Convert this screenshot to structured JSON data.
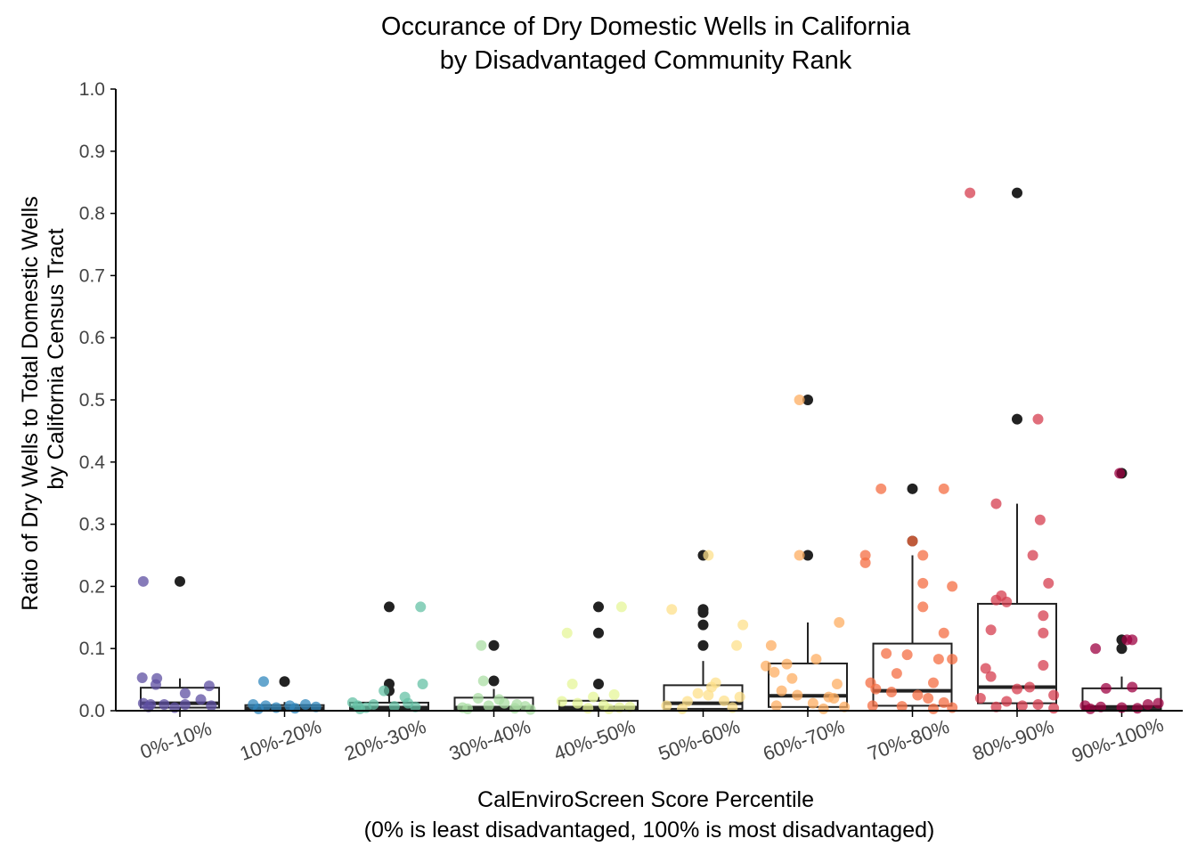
{
  "chart_data": {
    "type": "box",
    "title_line1": "Occurance of Dry Domestic Wells in California",
    "title_line2": "by Disadvantaged Community Rank",
    "xlabel_line1": "CalEnviroScreen Score Percentile",
    "xlabel_line2": "(0% is least disadvantaged, 100% is most disadvantaged)",
    "ylabel_line1": "Ratio of Dry Wells to Total Domestic Wells",
    "ylabel_line2": "by California Census Tract",
    "ylim": [
      0,
      1.0
    ],
    "yticks": [
      "0.0",
      "0.1",
      "0.2",
      "0.3",
      "0.4",
      "0.5",
      "0.6",
      "0.7",
      "0.8",
      "0.9",
      "1.0"
    ],
    "grid": false,
    "categories": [
      "0%-10%",
      "10%-20%",
      "20%-30%",
      "30%-40%",
      "40%-50%",
      "50%-60%",
      "60%-70%",
      "70%-80%",
      "80%-90%",
      "90%-100%"
    ],
    "colors": [
      "#5e4fa2",
      "#3288bd",
      "#66c2a5",
      "#abdda4",
      "#e6f598",
      "#fee08b",
      "#fdae61",
      "#f46d43",
      "#d53e4f",
      "#9e0142"
    ],
    "boxes": [
      {
        "q1": 0.005,
        "median": 0.012,
        "q3": 0.037,
        "whisker_low": 0.0,
        "whisker_high": 0.052,
        "outliers": [
          0.208
        ]
      },
      {
        "q1": 0.001,
        "median": 0.004,
        "q3": 0.009,
        "whisker_low": 0.0,
        "whisker_high": 0.014,
        "outliers": [
          0.047
        ]
      },
      {
        "q1": 0.001,
        "median": 0.005,
        "q3": 0.013,
        "whisker_low": 0.0,
        "whisker_high": 0.025,
        "outliers": [
          0.032,
          0.043,
          0.167
        ]
      },
      {
        "q1": 0.001,
        "median": 0.005,
        "q3": 0.021,
        "whisker_low": 0.0,
        "whisker_high": 0.035,
        "outliers": [
          0.048,
          0.105
        ]
      },
      {
        "q1": 0.001,
        "median": 0.005,
        "q3": 0.016,
        "whisker_low": 0.0,
        "whisker_high": 0.022,
        "outliers": [
          0.043,
          0.125,
          0.167
        ]
      },
      {
        "q1": 0.003,
        "median": 0.012,
        "q3": 0.041,
        "whisker_low": 0.0,
        "whisker_high": 0.08,
        "outliers": [
          0.105,
          0.138,
          0.158,
          0.163,
          0.25
        ]
      },
      {
        "q1": 0.006,
        "median": 0.024,
        "q3": 0.076,
        "whisker_low": 0.0,
        "whisker_high": 0.142,
        "outliers": [
          0.25,
          0.5
        ]
      },
      {
        "q1": 0.008,
        "median": 0.032,
        "q3": 0.108,
        "whisker_low": 0.0,
        "whisker_high": 0.25,
        "outliers": [
          0.273,
          0.357
        ]
      },
      {
        "q1": 0.012,
        "median": 0.038,
        "q3": 0.172,
        "whisker_low": 0.0,
        "whisker_high": 0.333,
        "outliers": [
          0.469,
          0.833
        ]
      },
      {
        "q1": 0.002,
        "median": 0.006,
        "q3": 0.036,
        "whisker_low": 0.0,
        "whisker_high": 0.055,
        "outliers": [
          0.1,
          0.114,
          0.382
        ]
      }
    ],
    "points": [
      [
        [
          -0.35,
          0.208
        ],
        [
          -0.36,
          0.053
        ],
        [
          -0.22,
          0.052
        ],
        [
          -0.23,
          0.042
        ],
        [
          0.05,
          0.028
        ],
        [
          -0.35,
          0.012
        ],
        [
          -0.28,
          0.01
        ],
        [
          -0.15,
          0.01
        ],
        [
          0.05,
          0.01
        ],
        [
          0.2,
          0.018
        ],
        [
          0.28,
          0.04
        ],
        [
          0.3,
          0.008
        ],
        [
          -0.3,
          0.006
        ],
        [
          -0.05,
          0.005
        ]
      ],
      [
        [
          -0.2,
          0.047
        ],
        [
          -0.3,
          0.01
        ],
        [
          -0.18,
          0.008
        ],
        [
          -0.08,
          0.005
        ],
        [
          0.05,
          0.008
        ],
        [
          0.2,
          0.01
        ],
        [
          0.3,
          0.006
        ],
        [
          0.1,
          0.004
        ],
        [
          -0.25,
          0.003
        ]
      ],
      [
        [
          0.3,
          0.167
        ],
        [
          -0.05,
          0.032
        ],
        [
          0.32,
          0.043
        ],
        [
          0.15,
          0.022
        ],
        [
          -0.35,
          0.013
        ],
        [
          -0.3,
          0.008
        ],
        [
          -0.22,
          0.005
        ],
        [
          -0.15,
          0.01
        ],
        [
          0.05,
          0.007
        ],
        [
          0.18,
          0.012
        ],
        [
          0.25,
          0.006
        ],
        [
          -0.28,
          0.003
        ]
      ],
      [
        [
          -0.12,
          0.105
        ],
        [
          -0.1,
          0.048
        ],
        [
          -0.25,
          0.003
        ],
        [
          -0.15,
          0.02
        ],
        [
          0.05,
          0.018
        ],
        [
          0.1,
          0.012
        ],
        [
          -0.3,
          0.005
        ],
        [
          0.3,
          0.007
        ],
        [
          0.22,
          0.01
        ],
        [
          -0.05,
          0.008
        ],
        [
          0.2,
          0.004
        ],
        [
          0.35,
          0.002
        ]
      ],
      [
        [
          -0.3,
          0.125
        ],
        [
          0.22,
          0.167
        ],
        [
          -0.25,
          0.043
        ],
        [
          0.15,
          0.026
        ],
        [
          -0.05,
          0.022
        ],
        [
          -0.35,
          0.015
        ],
        [
          -0.2,
          0.012
        ],
        [
          0.05,
          0.009
        ],
        [
          0.3,
          0.006
        ],
        [
          0.2,
          0.005
        ],
        [
          -0.1,
          0.004
        ],
        [
          0.1,
          0.003
        ]
      ],
      [
        [
          0.05,
          0.25
        ],
        [
          -0.3,
          0.163
        ],
        [
          0.38,
          0.138
        ],
        [
          0.32,
          0.105
        ],
        [
          0.12,
          0.045
        ],
        [
          0.08,
          0.038
        ],
        [
          -0.05,
          0.028
        ],
        [
          0.05,
          0.025
        ],
        [
          0.2,
          0.016
        ],
        [
          -0.15,
          0.015
        ],
        [
          0.35,
          0.022
        ],
        [
          -0.35,
          0.008
        ],
        [
          0.28,
          0.005
        ],
        [
          -0.2,
          0.003
        ]
      ],
      [
        [
          -0.08,
          0.5
        ],
        [
          -0.08,
          0.25
        ],
        [
          0.3,
          0.142
        ],
        [
          -0.35,
          0.105
        ],
        [
          0.08,
          0.083
        ],
        [
          -0.2,
          0.075
        ],
        [
          -0.4,
          0.072
        ],
        [
          -0.32,
          0.062
        ],
        [
          -0.15,
          0.052
        ],
        [
          0.28,
          0.043
        ],
        [
          -0.25,
          0.032
        ],
        [
          -0.1,
          0.025
        ],
        [
          0.2,
          0.022
        ],
        [
          0.25,
          0.02
        ],
        [
          0.05,
          0.012
        ],
        [
          -0.3,
          0.008
        ],
        [
          0.35,
          0.006
        ],
        [
          0.15,
          0.003
        ]
      ],
      [
        [
          -0.45,
          0.25
        ],
        [
          -0.45,
          0.238
        ],
        [
          -0.3,
          0.357
        ],
        [
          0.3,
          0.357
        ],
        [
          0.0,
          0.273
        ],
        [
          0.1,
          0.25
        ],
        [
          0.1,
          0.205
        ],
        [
          0.38,
          0.2
        ],
        [
          0.1,
          0.167
        ],
        [
          0.3,
          0.125
        ],
        [
          -0.25,
          0.092
        ],
        [
          -0.05,
          0.09
        ],
        [
          0.25,
          0.083
        ],
        [
          0.38,
          0.083
        ],
        [
          -0.15,
          0.06
        ],
        [
          -0.4,
          0.045
        ],
        [
          0.2,
          0.045
        ],
        [
          -0.35,
          0.035
        ],
        [
          -0.2,
          0.03
        ],
        [
          0.05,
          0.025
        ],
        [
          0.15,
          0.02
        ],
        [
          0.3,
          0.013
        ],
        [
          -0.38,
          0.008
        ],
        [
          -0.1,
          0.007
        ],
        [
          0.38,
          0.005
        ],
        [
          0.2,
          0.003
        ]
      ],
      [
        [
          -0.45,
          0.833
        ],
        [
          0.2,
          0.469
        ],
        [
          -0.2,
          0.333
        ],
        [
          0.22,
          0.307
        ],
        [
          0.15,
          0.25
        ],
        [
          0.3,
          0.205
        ],
        [
          -0.1,
          0.175
        ],
        [
          -0.2,
          0.178
        ],
        [
          -0.15,
          0.185
        ],
        [
          0.25,
          0.153
        ],
        [
          0.25,
          0.125
        ],
        [
          -0.25,
          0.13
        ],
        [
          0.25,
          0.073
        ],
        [
          -0.3,
          0.068
        ],
        [
          -0.25,
          0.055
        ],
        [
          0.0,
          0.035
        ],
        [
          0.12,
          0.038
        ],
        [
          0.35,
          0.025
        ],
        [
          -0.35,
          0.02
        ],
        [
          -0.1,
          0.015
        ],
        [
          0.2,
          0.01
        ],
        [
          0.05,
          0.008
        ],
        [
          -0.2,
          0.006
        ],
        [
          0.35,
          0.004
        ]
      ],
      [
        [
          -0.02,
          0.382
        ],
        [
          0.1,
          0.114
        ],
        [
          -0.25,
          0.1
        ],
        [
          0.05,
          0.114
        ],
        [
          -0.15,
          0.036
        ],
        [
          0.1,
          0.038
        ],
        [
          -0.35,
          0.008
        ],
        [
          -0.2,
          0.006
        ],
        [
          0.0,
          0.005
        ],
        [
          0.25,
          0.01
        ],
        [
          0.35,
          0.012
        ],
        [
          0.15,
          0.004
        ],
        [
          -0.3,
          0.003
        ]
      ]
    ]
  }
}
